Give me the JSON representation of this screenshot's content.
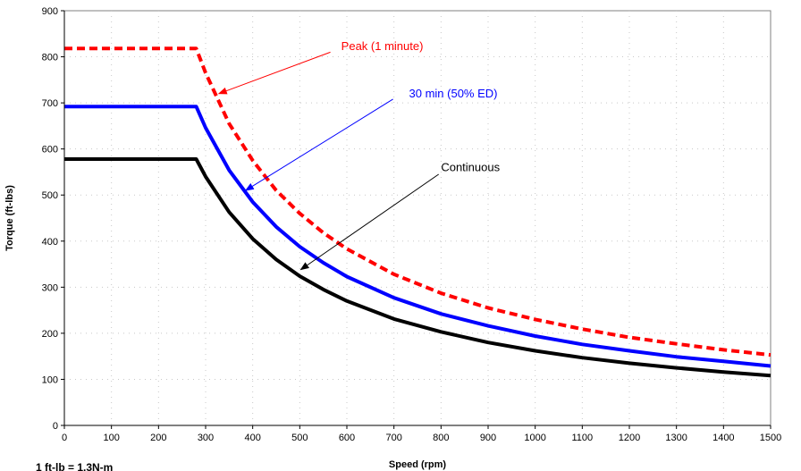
{
  "chart_data": {
    "type": "line",
    "title": "",
    "xlabel": "Speed (rpm)",
    "ylabel": "Torque (ft-lbs)",
    "xlim": [
      0,
      1500
    ],
    "ylim": [
      0,
      900
    ],
    "xticks": [
      0,
      100,
      200,
      300,
      400,
      500,
      600,
      700,
      800,
      900,
      1000,
      1100,
      1200,
      1300,
      1400,
      1500
    ],
    "yticks": [
      0,
      100,
      200,
      300,
      400,
      500,
      600,
      700,
      800,
      900
    ],
    "grid": "dotted",
    "series": [
      {
        "name": "Peak (1 minute)",
        "color": "#ff0000",
        "style": "dashed",
        "x": [
          0,
          280,
          300,
          350,
          400,
          450,
          500,
          550,
          600,
          700,
          800,
          900,
          1000,
          1100,
          1200,
          1300,
          1400,
          1500
        ],
        "y": [
          818,
          818,
          765,
          655,
          575,
          510,
          460,
          418,
          383,
          328,
          287,
          255,
          230,
          209,
          191,
          177,
          164,
          153
        ]
      },
      {
        "name": "30 min (50% ED)",
        "color": "#0000ff",
        "style": "solid",
        "x": [
          0,
          280,
          300,
          350,
          400,
          450,
          500,
          550,
          600,
          700,
          800,
          900,
          1000,
          1100,
          1200,
          1300,
          1400,
          1500
        ],
        "y": [
          692,
          692,
          646,
          554,
          485,
          431,
          388,
          353,
          323,
          277,
          242,
          216,
          194,
          176,
          162,
          149,
          139,
          129
        ]
      },
      {
        "name": "Continuous",
        "color": "#000000",
        "style": "solid",
        "x": [
          0,
          280,
          300,
          350,
          400,
          450,
          500,
          550,
          600,
          700,
          800,
          900,
          1000,
          1100,
          1200,
          1300,
          1400,
          1500
        ],
        "y": [
          578,
          578,
          540,
          463,
          405,
          360,
          324,
          295,
          270,
          231,
          203,
          180,
          162,
          147,
          135,
          125,
          116,
          108
        ]
      }
    ],
    "annotations": [
      {
        "text": "Peak (1 minute)",
        "color": "#ff0000",
        "text_at": [
          588,
          822
        ],
        "arrow_from": [
          565,
          810
        ],
        "arrow_to": [
          328,
          720
        ]
      },
      {
        "text": "30 min (50% ED)",
        "color": "#0000ff",
        "text_at": [
          732,
          720
        ],
        "arrow_from": [
          698,
          708
        ],
        "arrow_to": [
          385,
          510
        ]
      },
      {
        "text": "Continuous",
        "color": "#000000",
        "text_at": [
          800,
          560
        ],
        "arrow_from": [
          795,
          545
        ],
        "arrow_to": [
          502,
          338
        ]
      }
    ],
    "footnote": "1 ft-lb = 1.3N-m"
  }
}
